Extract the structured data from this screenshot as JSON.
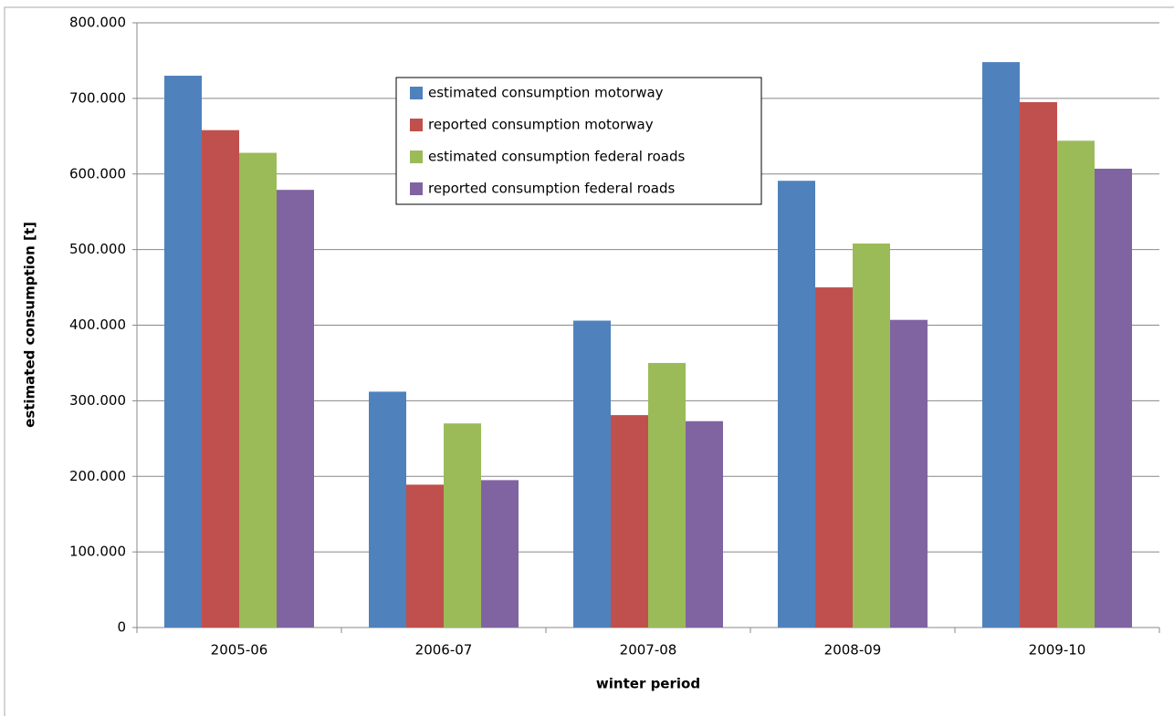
{
  "chart_data": {
    "type": "bar",
    "x_label": "winter period",
    "y_label": "estimated consumption [t]",
    "categories": [
      "2005-06",
      "2006-07",
      "2007-08",
      "2008-09",
      "2009-10"
    ],
    "series": [
      {
        "name": "estimated consumption motorway",
        "color": "#4f81bd",
        "values": [
          730000,
          312000,
          406000,
          591000,
          748000
        ]
      },
      {
        "name": "reported consumption motorway",
        "color": "#c0504d",
        "values": [
          658000,
          189000,
          281000,
          450000,
          695000
        ]
      },
      {
        "name": "estimated consumption federal roads",
        "color": "#9bbb59",
        "values": [
          628000,
          270000,
          350000,
          508000,
          644000
        ]
      },
      {
        "name": "reported consumption federal roads",
        "color": "#8064a2",
        "values": [
          579000,
          195000,
          273000,
          407000,
          607000
        ]
      }
    ],
    "ylim": [
      0,
      800000
    ],
    "yticks": [
      {
        "value": 0,
        "label": "0"
      },
      {
        "value": 100000,
        "label": "100.000"
      },
      {
        "value": 200000,
        "label": "200.000"
      },
      {
        "value": 300000,
        "label": "300.000"
      },
      {
        "value": 400000,
        "label": "400.000"
      },
      {
        "value": 500000,
        "label": "500.000"
      },
      {
        "value": 600000,
        "label": "600.000"
      },
      {
        "value": 700000,
        "label": "700.000"
      },
      {
        "value": 800000,
        "label": "800.000"
      }
    ],
    "grid": true,
    "legend": "top-center"
  }
}
